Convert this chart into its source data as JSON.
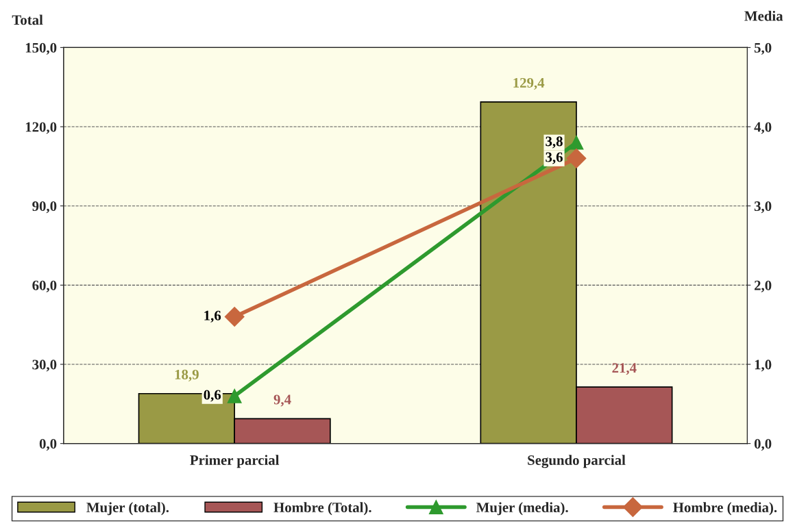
{
  "chart_data": {
    "type": "bar",
    "categories": [
      "Primer parcial",
      "Segundo parcial"
    ],
    "ylabel": "Total",
    "y2label": "Media",
    "series": [
      {
        "name": "Mujer (total).",
        "color": "#9a9a45",
        "values": [
          18.9,
          129.4
        ],
        "value_labels": [
          "18,9",
          "129,4"
        ]
      },
      {
        "name": "Hombre (Total).",
        "color": "#a65656",
        "values": [
          9.4,
          21.4
        ],
        "value_labels": [
          "9,4",
          "21,4"
        ]
      },
      {
        "name": "Mujer (media).",
        "type": "line",
        "axis": "y2",
        "color": "#2e9a2e",
        "marker": "triangle",
        "values": [
          0.6,
          3.8
        ],
        "value_labels": [
          "0,6",
          "3,8"
        ]
      },
      {
        "name": "Hombre (media).",
        "type": "line",
        "axis": "y2",
        "color": "#c8673e",
        "marker": "diamond",
        "values": [
          1.6,
          3.6
        ],
        "value_labels": [
          "1,6",
          "3,6"
        ]
      }
    ],
    "ylim": [
      0,
      150
    ],
    "yticks": [
      {
        "value": 0,
        "label": "0,0"
      },
      {
        "value": 30,
        "label": "30,0"
      },
      {
        "value": 60,
        "label": "60,0"
      },
      {
        "value": 90,
        "label": "90,0"
      },
      {
        "value": 120,
        "label": "120,0"
      },
      {
        "value": 150,
        "label": "150,0"
      }
    ],
    "y2lim": [
      0,
      5
    ],
    "y2ticks": [
      {
        "value": 0,
        "label": "0,0"
      },
      {
        "value": 1,
        "label": "1,0"
      },
      {
        "value": 2,
        "label": "2,0"
      },
      {
        "value": 3,
        "label": "3,0"
      },
      {
        "value": 4,
        "label": "4,0"
      },
      {
        "value": 5,
        "label": "5,0"
      }
    ],
    "grid": "y",
    "legend": "bottom"
  }
}
